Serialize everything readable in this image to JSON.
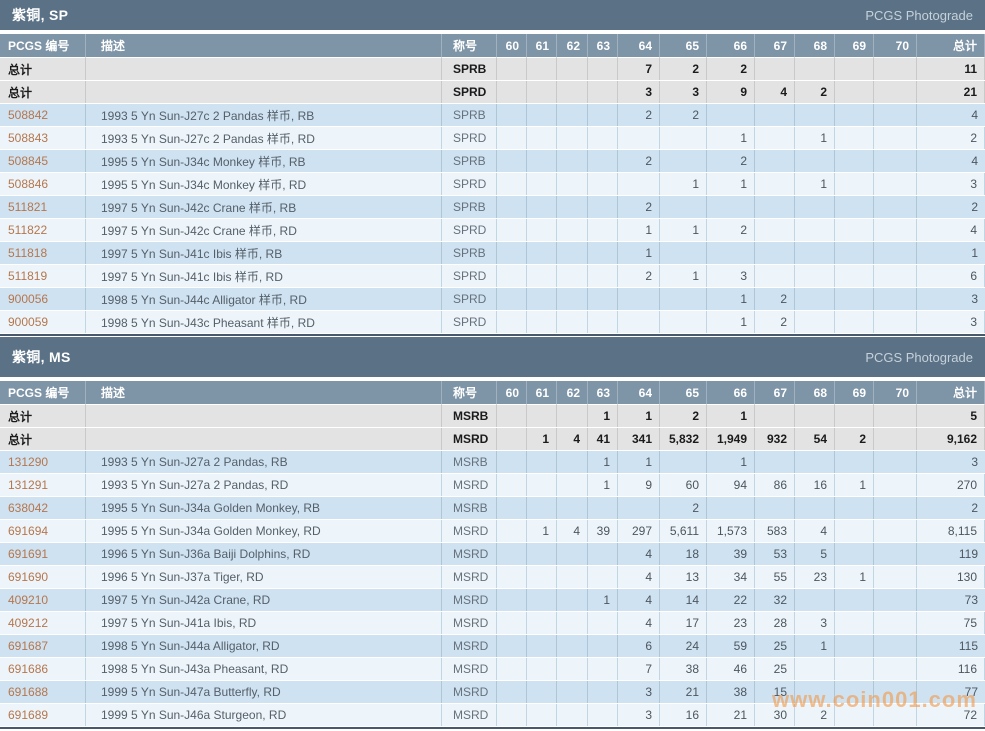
{
  "photograde_label": "PCGS Photograde",
  "watermark": "www.coin001.com",
  "colors": {
    "section_header": "#5a7186",
    "column_header": "#7e94a7",
    "total_row_bg": "#e3e3e3",
    "row_blue": "#cfe2f1",
    "row_light": "#edf5fa",
    "pcgs_number_link": "#b5764d",
    "watermark_orange": "#f2994a"
  },
  "columns": [
    "PCGS 编号",
    "描述",
    "称号",
    "60",
    "61",
    "62",
    "63",
    "64",
    "65",
    "66",
    "67",
    "68",
    "69",
    "70",
    "总计"
  ],
  "sections": [
    {
      "title": "紫铜, SP",
      "total_rows": [
        {
          "label": "总计",
          "designation": "SPRB",
          "grades": {
            "64": "7",
            "65": "2",
            "66": "2"
          },
          "total": "11"
        },
        {
          "label": "总计",
          "designation": "SPRD",
          "grades": {
            "64": "3",
            "65": "3",
            "66": "9",
            "67": "4",
            "68": "2"
          },
          "total": "21"
        }
      ],
      "rows": [
        {
          "pcgs": "508842",
          "desc": "1993 5 Yn Sun-J27c 2 Pandas 样币, RB",
          "designation": "SPRB",
          "grades": {
            "64": "2",
            "65": "2"
          },
          "total": "4"
        },
        {
          "pcgs": "508843",
          "desc": "1993 5 Yn Sun-J27c 2 Pandas 样币, RD",
          "designation": "SPRD",
          "grades": {
            "66": "1",
            "68": "1"
          },
          "total": "2"
        },
        {
          "pcgs": "508845",
          "desc": "1995 5 Yn Sun-J34c Monkey 样币, RB",
          "designation": "SPRB",
          "grades": {
            "64": "2",
            "66": "2"
          },
          "total": "4"
        },
        {
          "pcgs": "508846",
          "desc": "1995 5 Yn Sun-J34c Monkey 样币, RD",
          "designation": "SPRD",
          "grades": {
            "65": "1",
            "66": "1",
            "68": "1"
          },
          "total": "3"
        },
        {
          "pcgs": "511821",
          "desc": "1997 5 Yn Sun-J42c Crane 样币, RB",
          "designation": "SPRB",
          "grades": {
            "64": "2"
          },
          "total": "2"
        },
        {
          "pcgs": "511822",
          "desc": "1997 5 Yn Sun-J42c Crane 样币, RD",
          "designation": "SPRD",
          "grades": {
            "64": "1",
            "65": "1",
            "66": "2"
          },
          "total": "4"
        },
        {
          "pcgs": "511818",
          "desc": "1997 5 Yn Sun-J41c Ibis 样币, RB",
          "designation": "SPRB",
          "grades": {
            "64": "1"
          },
          "total": "1"
        },
        {
          "pcgs": "511819",
          "desc": "1997 5 Yn Sun-J41c Ibis 样币, RD",
          "designation": "SPRD",
          "grades": {
            "64": "2",
            "65": "1",
            "66": "3"
          },
          "total": "6"
        },
        {
          "pcgs": "900056",
          "desc": "1998 5 Yn Sun-J44c Alligator 样币, RD",
          "designation": "SPRD",
          "grades": {
            "66": "1",
            "67": "2"
          },
          "total": "3"
        },
        {
          "pcgs": "900059",
          "desc": "1998 5 Yn Sun-J43c Pheasant 样币, RD",
          "designation": "SPRD",
          "grades": {
            "66": "1",
            "67": "2"
          },
          "total": "3"
        }
      ]
    },
    {
      "title": "紫铜, MS",
      "total_rows": [
        {
          "label": "总计",
          "designation": "MSRB",
          "grades": {
            "63": "1",
            "64": "1",
            "65": "2",
            "66": "1"
          },
          "total": "5"
        },
        {
          "label": "总计",
          "designation": "MSRD",
          "grades": {
            "61": "1",
            "62": "4",
            "63": "41",
            "64": "341",
            "65": "5,832",
            "66": "1,949",
            "67": "932",
            "68": "54",
            "69": "2"
          },
          "total": "9,162"
        }
      ],
      "rows": [
        {
          "pcgs": "131290",
          "desc": "1993 5 Yn Sun-J27a 2 Pandas, RB",
          "designation": "MSRB",
          "grades": {
            "63": "1",
            "64": "1",
            "66": "1"
          },
          "total": "3"
        },
        {
          "pcgs": "131291",
          "desc": "1993 5 Yn Sun-J27a 2 Pandas, RD",
          "designation": "MSRD",
          "grades": {
            "63": "1",
            "64": "9",
            "65": "60",
            "66": "94",
            "67": "86",
            "68": "16",
            "69": "1"
          },
          "total": "270"
        },
        {
          "pcgs": "638042",
          "desc": "1995 5 Yn Sun-J34a Golden Monkey, RB",
          "designation": "MSRB",
          "grades": {
            "65": "2"
          },
          "total": "2"
        },
        {
          "pcgs": "691694",
          "desc": "1995 5 Yn Sun-J34a Golden Monkey, RD",
          "designation": "MSRD",
          "grades": {
            "61": "1",
            "62": "4",
            "63": "39",
            "64": "297",
            "65": "5,611",
            "66": "1,573",
            "67": "583",
            "68": "4"
          },
          "total": "8,115"
        },
        {
          "pcgs": "691691",
          "desc": "1996 5 Yn Sun-J36a Baiji Dolphins, RD",
          "designation": "MSRD",
          "grades": {
            "64": "4",
            "65": "18",
            "66": "39",
            "67": "53",
            "68": "5"
          },
          "total": "119"
        },
        {
          "pcgs": "691690",
          "desc": "1996 5 Yn Sun-J37a Tiger, RD",
          "designation": "MSRD",
          "grades": {
            "64": "4",
            "65": "13",
            "66": "34",
            "67": "55",
            "68": "23",
            "69": "1"
          },
          "total": "130"
        },
        {
          "pcgs": "409210",
          "desc": "1997 5 Yn Sun-J42a Crane, RD",
          "designation": "MSRD",
          "grades": {
            "63": "1",
            "64": "4",
            "65": "14",
            "66": "22",
            "67": "32"
          },
          "total": "73"
        },
        {
          "pcgs": "409212",
          "desc": "1997 5 Yn Sun-J41a Ibis, RD",
          "designation": "MSRD",
          "grades": {
            "64": "4",
            "65": "17",
            "66": "23",
            "67": "28",
            "68": "3"
          },
          "total": "75"
        },
        {
          "pcgs": "691687",
          "desc": "1998 5 Yn Sun-J44a Alligator, RD",
          "designation": "MSRD",
          "grades": {
            "64": "6",
            "65": "24",
            "66": "59",
            "67": "25",
            "68": "1"
          },
          "total": "115"
        },
        {
          "pcgs": "691686",
          "desc": "1998 5 Yn Sun-J43a Pheasant, RD",
          "designation": "MSRD",
          "grades": {
            "64": "7",
            "65": "38",
            "66": "46",
            "67": "25"
          },
          "total": "116"
        },
        {
          "pcgs": "691688",
          "desc": "1999 5 Yn Sun-J47a Butterfly, RD",
          "designation": "MSRD",
          "grades": {
            "64": "3",
            "65": "21",
            "66": "38",
            "67": "15"
          },
          "total": "77"
        },
        {
          "pcgs": "691689",
          "desc": "1999 5 Yn Sun-J46a Sturgeon, RD",
          "designation": "MSRD",
          "grades": {
            "64": "3",
            "65": "16",
            "66": "21",
            "67": "30",
            "68": "2"
          },
          "total": "72"
        }
      ]
    }
  ]
}
